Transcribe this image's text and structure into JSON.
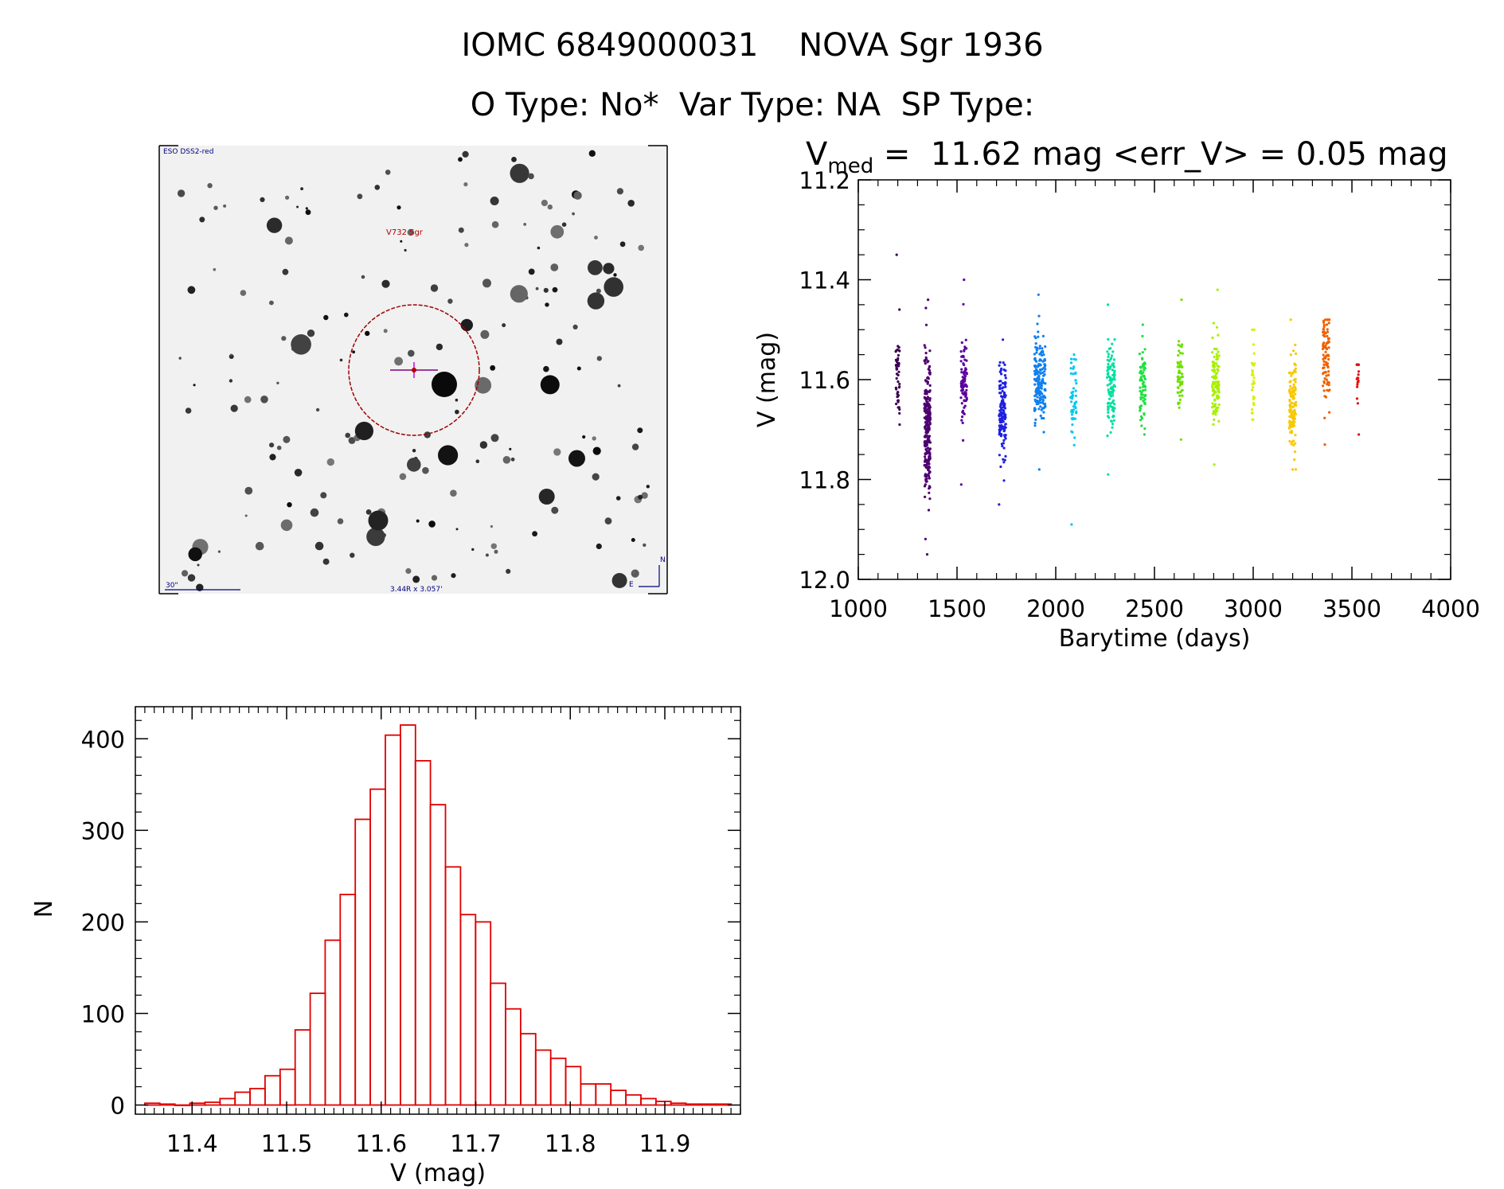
{
  "header": {
    "line1": "IOMC 6849000031    NOVA Sgr 1936",
    "line2": "O Type: No*  Var Type: NA  SP Type:"
  },
  "finder": {
    "survey_label": "ESO DSS2-red",
    "target_label": "V732 Sgr",
    "scale_label": "30\"",
    "coord_label": "3.44R x 3.057'",
    "north_label": "N",
    "east_label": "E"
  },
  "colors": {
    "histogram": "#e00000",
    "finder_circle": "#a00000",
    "finder_text_red": "#b00000",
    "finder_text_blue": "#000080"
  },
  "chart_data": [
    {
      "id": "lightcurve",
      "type": "scatter",
      "title_prefix": "V",
      "title_subscript": "med",
      "title_rest": " =  11.62 mag <err_V> = 0.05 mag",
      "xlabel": "Barytime (days)",
      "ylabel": "V (mag)",
      "xlim": [
        1000,
        4000
      ],
      "ylim": [
        12.0,
        11.2
      ],
      "xticks": [
        1000,
        1500,
        2000,
        2500,
        3000,
        3500,
        4000
      ],
      "xtick_labels": [
        "1000",
        "1500",
        "2000",
        "2500",
        "3000",
        "3500",
        "4000"
      ],
      "yticks": [
        11.2,
        11.4,
        11.6,
        11.8,
        12.0
      ],
      "ytick_labels": [
        "11.2",
        "11.4",
        "11.6",
        "11.8",
        "12.0"
      ],
      "clusters": [
        {
          "x": 1200,
          "width": 20,
          "center": 11.59,
          "spread": 0.045,
          "min": 11.35,
          "max": 11.69,
          "n": 50,
          "color": "#3a0050"
        },
        {
          "x": 1350,
          "width": 30,
          "center": 11.69,
          "spread": 0.07,
          "min": 11.44,
          "max": 11.95,
          "n": 260,
          "color": "#4d0070"
        },
        {
          "x": 1535,
          "width": 30,
          "center": 11.61,
          "spread": 0.04,
          "min": 11.4,
          "max": 11.81,
          "n": 90,
          "color": "#5a00a0"
        },
        {
          "x": 1730,
          "width": 35,
          "center": 11.66,
          "spread": 0.045,
          "min": 11.52,
          "max": 11.85,
          "n": 140,
          "color": "#2020e0"
        },
        {
          "x": 1920,
          "width": 55,
          "center": 11.6,
          "spread": 0.045,
          "min": 11.43,
          "max": 11.78,
          "n": 180,
          "color": "#1080f0"
        },
        {
          "x": 2090,
          "width": 30,
          "center": 11.65,
          "spread": 0.05,
          "min": 11.55,
          "max": 11.89,
          "n": 50,
          "color": "#00c8f0"
        },
        {
          "x": 2280,
          "width": 40,
          "center": 11.61,
          "spread": 0.045,
          "min": 11.45,
          "max": 11.79,
          "n": 110,
          "color": "#00e0a0"
        },
        {
          "x": 2440,
          "width": 30,
          "center": 11.61,
          "spread": 0.04,
          "min": 11.49,
          "max": 11.71,
          "n": 80,
          "color": "#20e040"
        },
        {
          "x": 2630,
          "width": 25,
          "center": 11.59,
          "spread": 0.035,
          "min": 11.44,
          "max": 11.72,
          "n": 60,
          "color": "#70e000"
        },
        {
          "x": 2810,
          "width": 35,
          "center": 11.6,
          "spread": 0.04,
          "min": 11.42,
          "max": 11.77,
          "n": 110,
          "color": "#a8f000"
        },
        {
          "x": 3000,
          "width": 15,
          "center": 11.6,
          "spread": 0.04,
          "min": 11.5,
          "max": 11.68,
          "n": 30,
          "color": "#d8f000"
        },
        {
          "x": 3200,
          "width": 35,
          "center": 11.65,
          "spread": 0.05,
          "min": 11.48,
          "max": 11.78,
          "n": 130,
          "color": "#f8c800"
        },
        {
          "x": 3370,
          "width": 35,
          "center": 11.56,
          "spread": 0.045,
          "min": 11.48,
          "max": 11.73,
          "n": 90,
          "color": "#f06000"
        },
        {
          "x": 3530,
          "width": 10,
          "center": 11.6,
          "spread": 0.03,
          "min": 11.57,
          "max": 11.71,
          "n": 20,
          "color": "#e01010"
        }
      ]
    },
    {
      "id": "histogram",
      "type": "bar",
      "xlabel": "V (mag)",
      "ylabel": "N",
      "xlim": [
        11.34,
        11.98
      ],
      "ylim": [
        -10,
        435
      ],
      "bin_width": 0.0159,
      "bin_start": 11.35,
      "values": [
        2,
        1,
        0,
        2,
        3,
        7,
        14,
        18,
        32,
        39,
        82,
        122,
        180,
        230,
        312,
        345,
        404,
        415,
        376,
        328,
        260,
        208,
        200,
        133,
        105,
        78,
        60,
        51,
        42,
        23,
        23,
        16,
        11,
        7,
        4,
        2,
        1,
        1,
        1
      ],
      "xticks": [
        11.4,
        11.5,
        11.6,
        11.7,
        11.8,
        11.9
      ],
      "xtick_labels": [
        "11.4",
        "11.5",
        "11.6",
        "11.7",
        "11.8",
        "11.9"
      ],
      "yticks": [
        0,
        100,
        200,
        300,
        400
      ],
      "ytick_labels": [
        "0",
        "100",
        "200",
        "300",
        "400"
      ]
    }
  ]
}
